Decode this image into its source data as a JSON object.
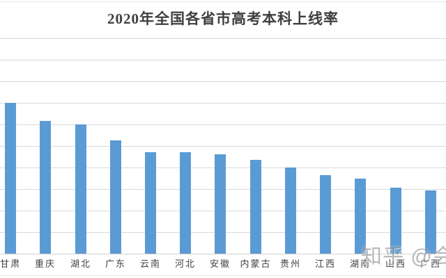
{
  "title": "2020年全国各省市高考本科上线率",
  "watermark": {
    "text": "知乎 @会"
  },
  "colors": {
    "bar": "#5b9bd5",
    "gridline": "#d9d9d9",
    "axis_line": "#d0d0d0",
    "frame_line": "#e7e7e7",
    "title_text": "#3f3f3f",
    "label_text": "#404040",
    "watermark_text": "#8f8f8f"
  },
  "chart_data": {
    "type": "bar",
    "title": "2020年全国各省市高考本科上线率",
    "categories": [
      "甘肃",
      "重庆",
      "湖北",
      "广东",
      "云南",
      "河北",
      "安徽",
      "内蒙古",
      "贵州",
      "江西",
      "湖南",
      "山西",
      "广西"
    ],
    "values": [
      35,
      30.8,
      30,
      26.3,
      23.6,
      23.5,
      23.1,
      21.8,
      20,
      18.3,
      17.4,
      15.4,
      14.7
    ],
    "xlabel": "",
    "ylabel": "",
    "ylim": [
      0,
      50
    ],
    "gridline_step": 5,
    "grid": true,
    "legend_position": "none",
    "y_axis_labels_visible": false
  }
}
